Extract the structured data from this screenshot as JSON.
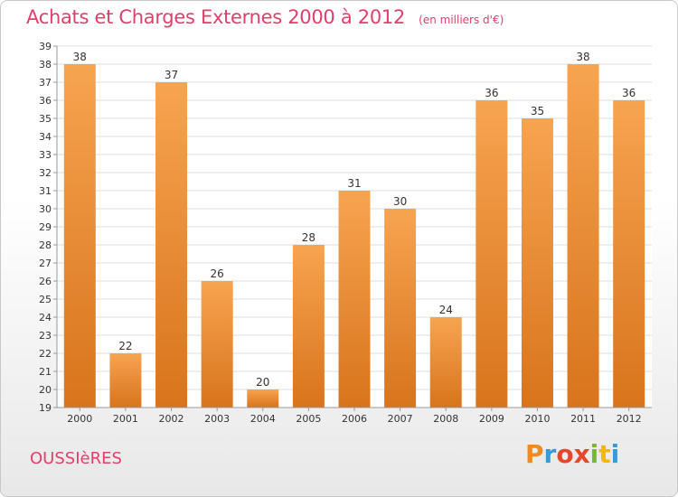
{
  "header": {
    "title": "Achats et Charges Externes 2000 à 2012",
    "unit": "(en milliers d'€)"
  },
  "footer": {
    "commune": "OUSSIèRES",
    "logo_letters": [
      "P",
      "r",
      "o",
      "x",
      "i",
      "t",
      "i"
    ],
    "logo_colors": [
      "#f08a1e",
      "#3a9ad9",
      "#e8462a",
      "#e8462a",
      "#7ab830",
      "#f5b800",
      "#3a9ad9"
    ]
  },
  "colors": {
    "bar_top": "#f7a450",
    "bar_bottom": "#d8741c",
    "accent": "#e0406a"
  },
  "chart_data": {
    "type": "bar",
    "title": "Achats et Charges Externes 2000 à 2012",
    "subtitle": "(en milliers d'€)",
    "categories": [
      "2000",
      "2001",
      "2002",
      "2003",
      "2004",
      "2005",
      "2006",
      "2007",
      "2008",
      "2009",
      "2010",
      "2011",
      "2012"
    ],
    "values": [
      38,
      22,
      37,
      26,
      20,
      28,
      31,
      30,
      24,
      36,
      35,
      38,
      36
    ],
    "ylim": [
      19,
      39
    ],
    "yticks": [
      19,
      20,
      21,
      22,
      23,
      24,
      25,
      26,
      27,
      28,
      29,
      30,
      31,
      32,
      33,
      34,
      35,
      36,
      37,
      38,
      39
    ],
    "xlabel": "",
    "ylabel": "",
    "grid": true
  }
}
